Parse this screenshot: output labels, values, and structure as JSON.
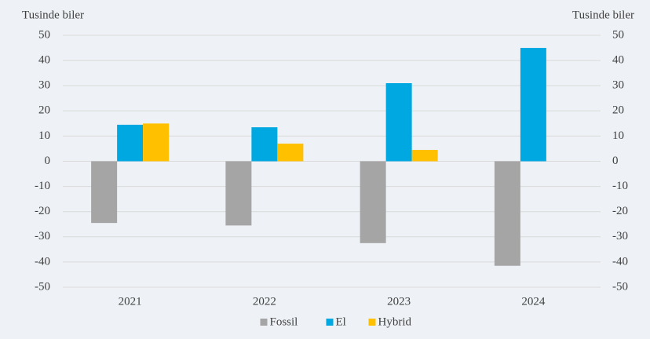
{
  "chart_data": {
    "type": "bar",
    "y_label": "Tusinde biler",
    "y2_label": "Tusinde biler",
    "categories": [
      "2021",
      "2022",
      "2023",
      "2024"
    ],
    "series": [
      {
        "name": "Fossil",
        "color": "#a5a5a5",
        "values": [
          -24.5,
          -25.5,
          -32.5,
          -41.5
        ]
      },
      {
        "name": "El",
        "color": "#00a8e1",
        "values": [
          14.5,
          13.5,
          31,
          45
        ]
      },
      {
        "name": "Hybrid",
        "color": "#ffc000",
        "values": [
          15,
          7,
          4.5,
          null
        ]
      }
    ],
    "ylim": [
      -50,
      50
    ],
    "yticks": [
      -50,
      -40,
      -30,
      -20,
      -10,
      0,
      10,
      20,
      30,
      40,
      50
    ],
    "y2lim": [
      -50,
      50
    ],
    "y2ticks": [
      -50,
      -40,
      -30,
      -20,
      -10,
      0,
      10,
      20,
      30,
      40,
      50
    ],
    "grid": true,
    "legend": "bottom"
  }
}
